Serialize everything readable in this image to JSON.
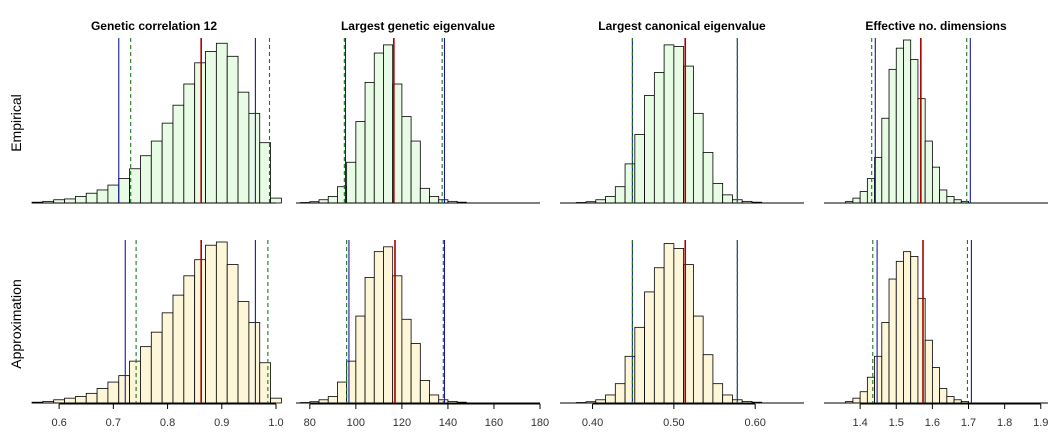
{
  "figure": {
    "row_labels": [
      "Empirical",
      "Approximation"
    ],
    "colors": {
      "empirical_fill": "#e8fbe4",
      "approximation_fill": "#fdf6d8",
      "bar_stroke": "#000000",
      "estimate_line": "#aa0000",
      "interval_solid": "#1a1a99",
      "interval_dashed": "#1a7a1a"
    }
  },
  "chart_data": [
    {
      "type": "bar",
      "title": "Genetic correlation 12",
      "xlim": [
        0.55,
        1.0
      ],
      "xticks": [
        "0.6",
        "0.7",
        "0.8",
        "0.9",
        "1.0"
      ],
      "xtick_values": [
        0.6,
        0.7,
        0.8,
        0.9,
        1.0
      ],
      "bin_start": 0.55,
      "bin_width": 0.02,
      "ymax": 1.0,
      "series": [
        {
          "name": "Empirical",
          "counts": [
            0.005,
            0.01,
            0.02,
            0.025,
            0.04,
            0.06,
            0.08,
            0.11,
            0.15,
            0.21,
            0.29,
            0.38,
            0.49,
            0.6,
            0.73,
            0.86,
            0.93,
            0.98,
            0.9,
            0.68,
            0.55,
            0.37,
            0.03
          ],
          "estimate": 0.862,
          "solid": [
            0.71,
            0.962
          ],
          "dashed": [
            0.732,
            0.988
          ]
        },
        {
          "name": "Approximation",
          "counts": [
            0.005,
            0.01,
            0.02,
            0.03,
            0.04,
            0.06,
            0.09,
            0.13,
            0.17,
            0.26,
            0.35,
            0.44,
            0.56,
            0.67,
            0.79,
            0.89,
            0.98,
            1.0,
            0.86,
            0.63,
            0.5,
            0.25,
            0.03
          ],
          "estimate": 0.862,
          "solid": [
            0.722,
            0.962
          ],
          "dashed": [
            0.742,
            0.985
          ]
        }
      ]
    },
    {
      "type": "bar",
      "title": "Largest genetic eigenvalue",
      "xlim": [
        74,
        180
      ],
      "xticks": [
        "80",
        "100",
        "120",
        "140",
        "160",
        "180"
      ],
      "xtick_values": [
        80,
        100,
        120,
        140,
        160,
        180
      ],
      "bin_start": 76,
      "bin_width": 4,
      "ymax": 1.0,
      "series": [
        {
          "name": "Empirical",
          "counts": [
            0.003,
            0.008,
            0.02,
            0.04,
            0.1,
            0.25,
            0.5,
            0.74,
            0.92,
            0.97,
            0.73,
            0.53,
            0.38,
            0.09,
            0.04,
            0.02,
            0.01,
            0.005
          ],
          "estimate": 116.5,
          "solid": [
            95.5,
            138.5
          ],
          "dashed": [
            95.0,
            137.5
          ]
        },
        {
          "name": "Approximation",
          "counts": [
            0.003,
            0.008,
            0.02,
            0.04,
            0.13,
            0.26,
            0.54,
            0.78,
            0.94,
            0.97,
            0.79,
            0.52,
            0.37,
            0.14,
            0.05,
            0.02,
            0.01,
            0.005
          ],
          "estimate": 117.0,
          "solid": [
            97.0,
            138.5
          ],
          "dashed": [
            96.0,
            138.0
          ]
        }
      ]
    },
    {
      "type": "bar",
      "title": "Largest canonical eigenvalue",
      "xlim": [
        0.36,
        0.66
      ],
      "xticks": [
        "0.40",
        "0.50",
        "0.60"
      ],
      "xtick_values": [
        0.4,
        0.5,
        0.6
      ],
      "bin_start": 0.38,
      "bin_width": 0.012,
      "ymax": 1.0,
      "series": [
        {
          "name": "Empirical",
          "counts": [
            0.003,
            0.008,
            0.02,
            0.04,
            0.1,
            0.24,
            0.42,
            0.66,
            0.8,
            0.97,
            0.96,
            0.84,
            0.55,
            0.31,
            0.12,
            0.05,
            0.02,
            0.01,
            0.005
          ],
          "estimate": 0.514,
          "solid": [
            0.449,
            0.578
          ],
          "dashed": [
            0.449,
            0.578
          ]
        },
        {
          "name": "Approximation",
          "counts": [
            0.003,
            0.008,
            0.02,
            0.05,
            0.12,
            0.29,
            0.47,
            0.69,
            0.84,
            0.99,
            0.96,
            0.86,
            0.54,
            0.3,
            0.12,
            0.05,
            0.02,
            0.01,
            0.005
          ],
          "estimate": 0.514,
          "solid": [
            0.449,
            0.578
          ],
          "dashed": [
            0.449,
            0.578
          ]
        }
      ]
    },
    {
      "type": "bar",
      "title": "Effective no. dimensions",
      "xlim": [
        1.3,
        1.92
      ],
      "xticks": [
        "1.4",
        "1.5",
        "1.6",
        "1.7",
        "1.8",
        "1.9"
      ],
      "xtick_values": [
        1.4,
        1.5,
        1.6,
        1.7,
        1.8,
        1.9
      ],
      "bin_start": 1.36,
      "bin_width": 0.02,
      "ymax": 1.0,
      "series": [
        {
          "name": "Empirical",
          "counts": [
            0.01,
            0.03,
            0.07,
            0.15,
            0.28,
            0.52,
            0.82,
            0.95,
            1.0,
            0.88,
            0.64,
            0.38,
            0.22,
            0.08,
            0.04,
            0.02,
            0.01
          ],
          "estimate": 1.568,
          "solid": [
            1.442,
            1.705
          ],
          "dashed": [
            1.432,
            1.695
          ]
        },
        {
          "name": "Approximation",
          "counts": [
            0.01,
            0.03,
            0.07,
            0.16,
            0.29,
            0.5,
            0.77,
            0.88,
            0.94,
            0.91,
            0.65,
            0.39,
            0.22,
            0.09,
            0.04,
            0.02,
            0.01
          ],
          "estimate": 1.574,
          "solid": [
            1.447,
            1.708
          ],
          "dashed": [
            1.435,
            1.697
          ]
        }
      ]
    }
  ]
}
